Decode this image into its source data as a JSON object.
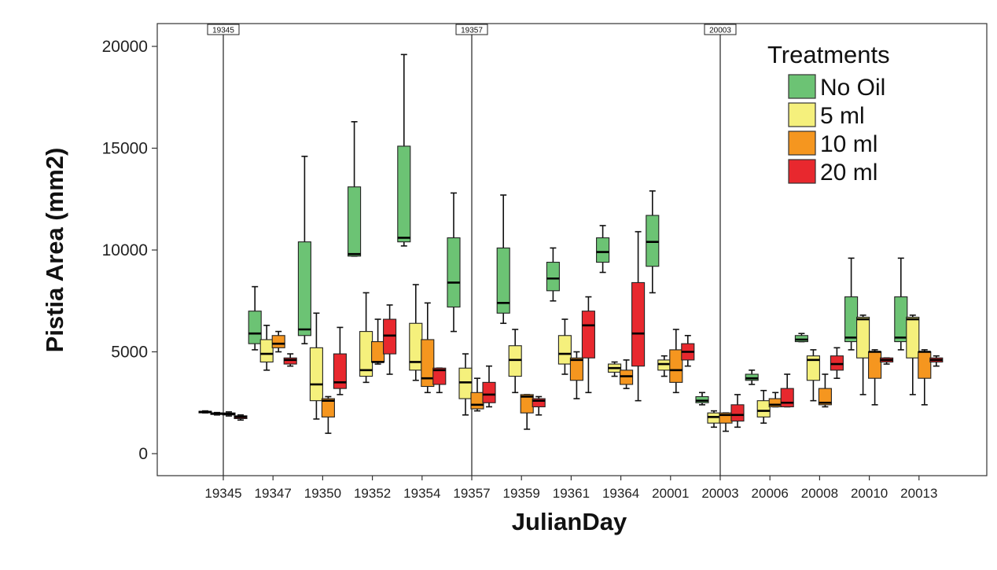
{
  "chart_data": {
    "type": "boxplot",
    "xlabel": "JulianDay",
    "ylabel": "Pistia Area (mm2)",
    "ylim": [
      0,
      20000
    ],
    "yticks": [
      0,
      5000,
      10000,
      15000,
      20000
    ],
    "categories": [
      "19345",
      "19347",
      "19350",
      "19352",
      "19354",
      "19357",
      "19359",
      "19361",
      "19364",
      "20001",
      "20003",
      "20006",
      "20008",
      "20010",
      "20013"
    ],
    "reference_lines": [
      "19345",
      "19357",
      "20003"
    ],
    "legend": {
      "title": "Treatments",
      "position": "top-right",
      "items": [
        "No Oil",
        "5 ml",
        "10 ml",
        "20 ml"
      ]
    },
    "series": [
      {
        "name": "No Oil",
        "color": "#6cc374",
        "boxes": [
          {
            "category": "19345",
            "min": 2000,
            "q1": 2020,
            "median": 2050,
            "q3": 2080,
            "max": 2100
          },
          {
            "category": "19347",
            "min": 5100,
            "q1": 5400,
            "median": 5900,
            "q3": 7000,
            "max": 8200
          },
          {
            "category": "19350",
            "min": 5400,
            "q1": 5800,
            "median": 6100,
            "q3": 10400,
            "max": 14600
          },
          {
            "category": "19352",
            "min": 9700,
            "q1": 9700,
            "median": 9800,
            "q3": 13100,
            "max": 16300
          },
          {
            "category": "19354",
            "min": 10200,
            "q1": 10400,
            "median": 10600,
            "q3": 15100,
            "max": 19600
          },
          {
            "category": "19357",
            "min": 6000,
            "q1": 7200,
            "median": 8400,
            "q3": 10600,
            "max": 12800
          },
          {
            "category": "19359",
            "min": 6400,
            "q1": 6900,
            "median": 7400,
            "q3": 10100,
            "max": 12700
          },
          {
            "category": "19361",
            "min": 7500,
            "q1": 8000,
            "median": 8600,
            "q3": 9400,
            "max": 10100
          },
          {
            "category": "19364",
            "min": 8900,
            "q1": 9400,
            "median": 9900,
            "q3": 10600,
            "max": 11200
          },
          {
            "category": "20001",
            "min": 7900,
            "q1": 9200,
            "median": 10400,
            "q3": 11700,
            "max": 12900
          },
          {
            "category": "20003",
            "min": 2400,
            "q1": 2500,
            "median": 2600,
            "q3": 2800,
            "max": 3000
          },
          {
            "category": "20006",
            "min": 3400,
            "q1": 3600,
            "median": 3700,
            "q3": 3900,
            "max": 4100
          },
          {
            "category": "20008",
            "min": 5500,
            "q1": 5500,
            "median": 5600,
            "q3": 5800,
            "max": 5900
          },
          {
            "category": "20010",
            "min": 5100,
            "q1": 5500,
            "median": 5700,
            "q3": 7700,
            "max": 9600
          },
          {
            "category": "20013",
            "min": 5100,
            "q1": 5500,
            "median": 5700,
            "q3": 7700,
            "max": 9600
          }
        ]
      },
      {
        "name": "5 ml",
        "color": "#f5f07c",
        "boxes": [
          {
            "category": "19345",
            "min": 1900,
            "q1": 1930,
            "median": 1970,
            "q3": 2000,
            "max": 2020
          },
          {
            "category": "19347",
            "min": 4100,
            "q1": 4500,
            "median": 4900,
            "q3": 5600,
            "max": 6300
          },
          {
            "category": "19350",
            "min": 1700,
            "q1": 2600,
            "median": 3400,
            "q3": 5200,
            "max": 6900
          },
          {
            "category": "19352",
            "min": 3500,
            "q1": 3800,
            "median": 4100,
            "q3": 6000,
            "max": 7900
          },
          {
            "category": "19354",
            "min": 3600,
            "q1": 4100,
            "median": 4500,
            "q3": 6400,
            "max": 8300
          },
          {
            "category": "19357",
            "min": 1900,
            "q1": 2700,
            "median": 3500,
            "q3": 4200,
            "max": 4900
          },
          {
            "category": "19359",
            "min": 3000,
            "q1": 3800,
            "median": 4600,
            "q3": 5300,
            "max": 6100
          },
          {
            "category": "19361",
            "min": 3900,
            "q1": 4400,
            "median": 4900,
            "q3": 5800,
            "max": 6600
          },
          {
            "category": "19364",
            "min": 3800,
            "q1": 4000,
            "median": 4200,
            "q3": 4400,
            "max": 4500
          },
          {
            "category": "20001",
            "min": 3800,
            "q1": 4100,
            "median": 4400,
            "q3": 4600,
            "max": 4800
          },
          {
            "category": "20003",
            "min": 1300,
            "q1": 1500,
            "median": 1800,
            "q3": 2000,
            "max": 2100
          },
          {
            "category": "20006",
            "min": 1500,
            "q1": 1800,
            "median": 2100,
            "q3": 2600,
            "max": 3100
          },
          {
            "category": "20008",
            "min": 2600,
            "q1": 3600,
            "median": 4600,
            "q3": 4800,
            "max": 5100
          },
          {
            "category": "20010",
            "min": 2900,
            "q1": 4700,
            "median": 6600,
            "q3": 6700,
            "max": 6800
          },
          {
            "category": "20013",
            "min": 2900,
            "q1": 4700,
            "median": 6600,
            "q3": 6700,
            "max": 6800
          }
        ]
      },
      {
        "name": "10 ml",
        "color": "#f5961f",
        "boxes": [
          {
            "category": "19345",
            "min": 1850,
            "q1": 1900,
            "median": 1950,
            "q3": 2000,
            "max": 2050
          },
          {
            "category": "19347",
            "min": 5000,
            "q1": 5200,
            "median": 5400,
            "q3": 5800,
            "max": 6000
          },
          {
            "category": "19350",
            "min": 1000,
            "q1": 1800,
            "median": 2600,
            "q3": 2700,
            "max": 2800
          },
          {
            "category": "19352",
            "min": 4400,
            "q1": 4500,
            "median": 4500,
            "q3": 5500,
            "max": 6600
          },
          {
            "category": "19354",
            "min": 3000,
            "q1": 3300,
            "median": 3700,
            "q3": 5600,
            "max": 7400
          },
          {
            "category": "19357",
            "min": 2100,
            "q1": 2200,
            "median": 2400,
            "q3": 3000,
            "max": 3700
          },
          {
            "category": "19359",
            "min": 1200,
            "q1": 2000,
            "median": 2800,
            "q3": 2900,
            "max": 2900
          },
          {
            "category": "19361",
            "min": 2700,
            "q1": 3600,
            "median": 4600,
            "q3": 4700,
            "max": 5000
          },
          {
            "category": "19364",
            "min": 3200,
            "q1": 3400,
            "median": 3800,
            "q3": 4100,
            "max": 4600
          },
          {
            "category": "20001",
            "min": 3000,
            "q1": 3500,
            "median": 4100,
            "q3": 5100,
            "max": 6100
          },
          {
            "category": "20003",
            "min": 1100,
            "q1": 1500,
            "median": 1900,
            "q3": 2000,
            "max": 2000
          },
          {
            "category": "20006",
            "min": 2300,
            "q1": 2300,
            "median": 2400,
            "q3": 2700,
            "max": 3000
          },
          {
            "category": "20008",
            "min": 2300,
            "q1": 2400,
            "median": 2500,
            "q3": 3200,
            "max": 3900
          },
          {
            "category": "20010",
            "min": 2400,
            "q1": 3700,
            "median": 5000,
            "q3": 5000,
            "max": 5100
          },
          {
            "category": "20013",
            "min": 2400,
            "q1": 3700,
            "median": 5000,
            "q3": 5000,
            "max": 5100
          }
        ]
      },
      {
        "name": "20 ml",
        "color": "#e8282e",
        "boxes": [
          {
            "category": "19345",
            "min": 1650,
            "q1": 1720,
            "median": 1800,
            "q3": 1860,
            "max": 1900
          },
          {
            "category": "19347",
            "min": 4300,
            "q1": 4400,
            "median": 4600,
            "q3": 4700,
            "max": 4900
          },
          {
            "category": "19350",
            "min": 2900,
            "q1": 3200,
            "median": 3500,
            "q3": 4900,
            "max": 6200
          },
          {
            "category": "19352",
            "min": 3900,
            "q1": 4900,
            "median": 5800,
            "q3": 6600,
            "max": 7300
          },
          {
            "category": "19354",
            "min": 3000,
            "q1": 3400,
            "median": 4100,
            "q3": 4200,
            "max": 4200
          },
          {
            "category": "19357",
            "min": 2300,
            "q1": 2500,
            "median": 2900,
            "q3": 3500,
            "max": 4300
          },
          {
            "category": "19359",
            "min": 1900,
            "q1": 2300,
            "median": 2600,
            "q3": 2700,
            "max": 2800
          },
          {
            "category": "19361",
            "min": 3000,
            "q1": 4700,
            "median": 6300,
            "q3": 7000,
            "max": 7700
          },
          {
            "category": "19364",
            "min": 2600,
            "q1": 4300,
            "median": 5900,
            "q3": 8400,
            "max": 10900
          },
          {
            "category": "20001",
            "min": 4300,
            "q1": 4600,
            "median": 5000,
            "q3": 5400,
            "max": 5800
          },
          {
            "category": "20003",
            "min": 1300,
            "q1": 1600,
            "median": 1900,
            "q3": 2400,
            "max": 2900
          },
          {
            "category": "20006",
            "min": 2300,
            "q1": 2300,
            "median": 2500,
            "q3": 3200,
            "max": 3900
          },
          {
            "category": "20008",
            "min": 3700,
            "q1": 4100,
            "median": 4400,
            "q3": 4800,
            "max": 5200
          },
          {
            "category": "20010",
            "min": 4400,
            "q1": 4500,
            "median": 4600,
            "q3": 4700,
            "max": 4700
          },
          {
            "category": "20013",
            "min": 4300,
            "q1": 4500,
            "median": 4600,
            "q3": 4700,
            "max": 4800
          }
        ]
      }
    ]
  }
}
